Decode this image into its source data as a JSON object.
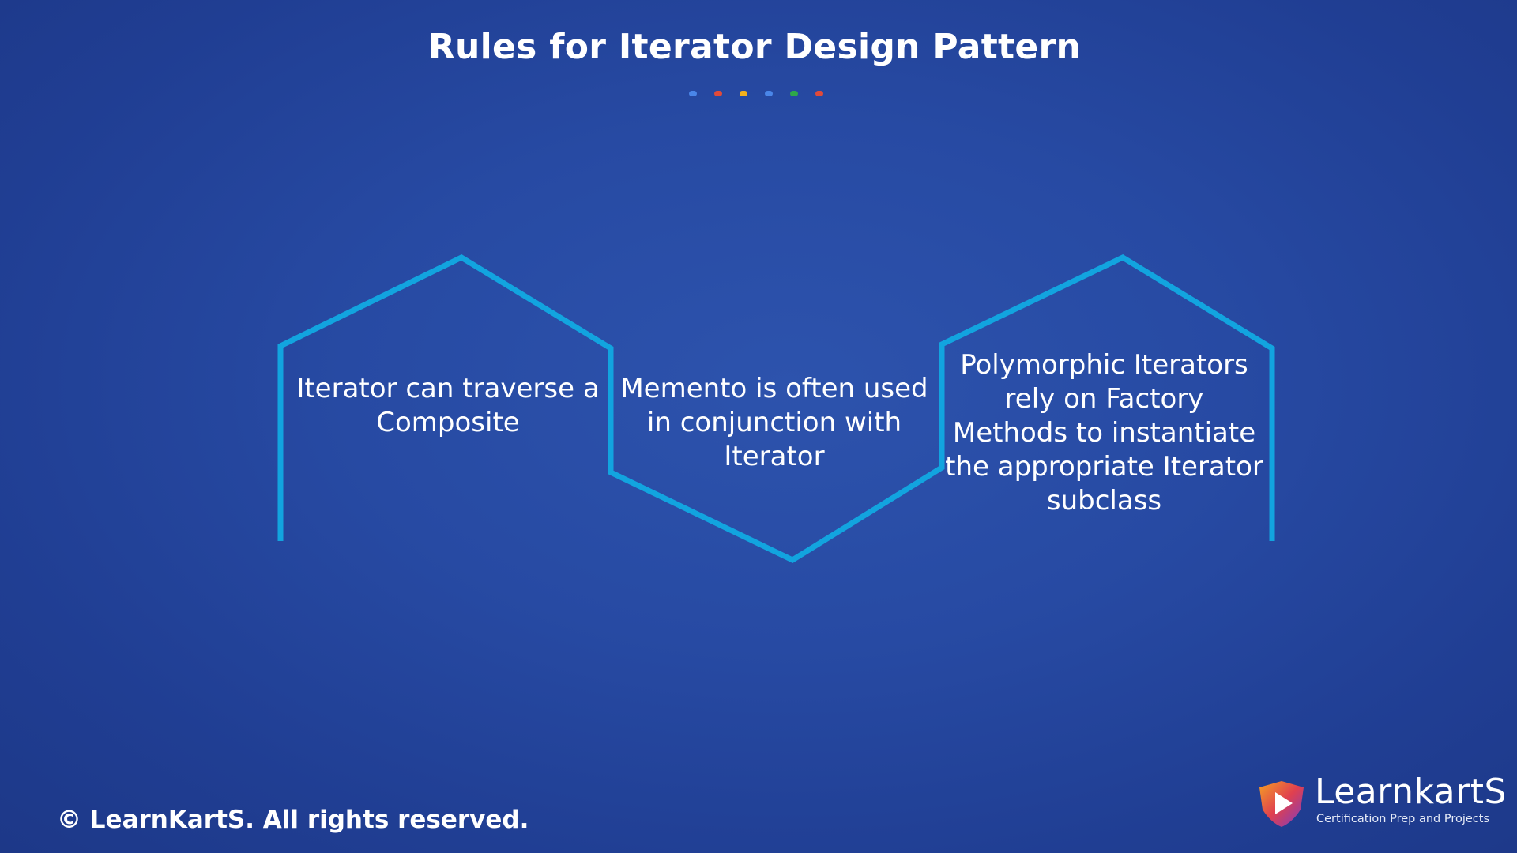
{
  "title": "Rules for Iterator Design Pattern",
  "dot_colors": [
    "#4a86e8",
    "#e04a3a",
    "#f2b01e",
    "#4a86e8",
    "#2ea84a",
    "#e04a3a"
  ],
  "accent_color": "#12a4df",
  "boxes": [
    {
      "text": "Iterator can traverse a Composite"
    },
    {
      "text": "Memento is often used in conjunction with Iterator"
    },
    {
      "text": "Polymorphic Iterators rely on Factory Methods to instantiate the appropriate Iterator subclass"
    }
  ],
  "footer": {
    "copyright": "© LearnKartS. All rights reserved."
  },
  "logo": {
    "name": "LearnkartS",
    "tagline": "Certification Prep and Projects"
  }
}
